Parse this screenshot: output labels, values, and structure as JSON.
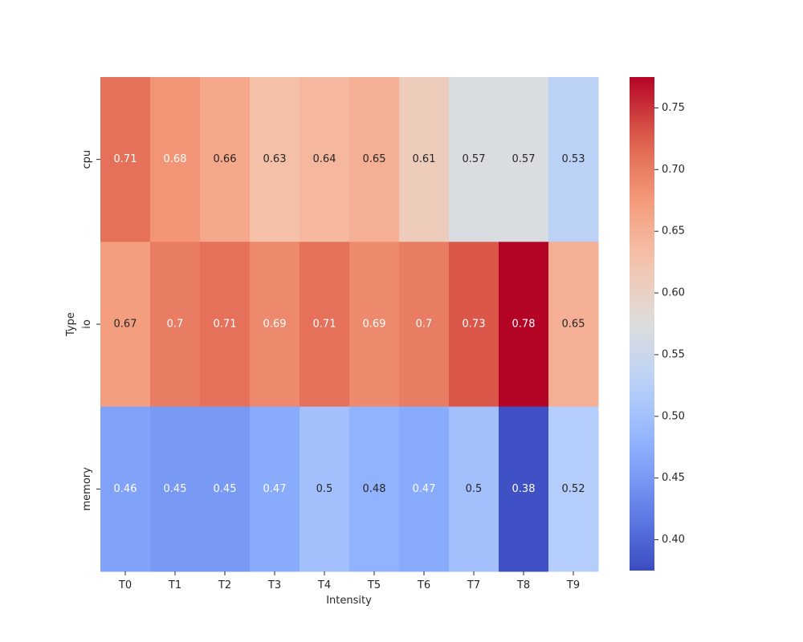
{
  "chart_data": {
    "type": "heatmap",
    "title": "",
    "xlabel": "Intensity",
    "ylabel": "Type",
    "x_categories": [
      "T0",
      "T1",
      "T2",
      "T3",
      "T4",
      "T5",
      "T6",
      "T7",
      "T8",
      "T9"
    ],
    "y_categories": [
      "cpu",
      "io",
      "memory"
    ],
    "values": [
      [
        0.71,
        0.68,
        0.66,
        0.63,
        0.64,
        0.65,
        0.61,
        0.57,
        0.57,
        0.53
      ],
      [
        0.67,
        0.7,
        0.71,
        0.69,
        0.71,
        0.69,
        0.7,
        0.73,
        0.78,
        0.65
      ],
      [
        0.46,
        0.45,
        0.45,
        0.47,
        0.5,
        0.48,
        0.47,
        0.5,
        0.38,
        0.52
      ]
    ],
    "value_labels": [
      [
        "0.71",
        "0.68",
        "0.66",
        "0.63",
        "0.64",
        "0.65",
        "0.61",
        "0.57",
        "0.57",
        "0.53"
      ],
      [
        "0.67",
        "0.7",
        "0.71",
        "0.69",
        "0.71",
        "0.69",
        "0.7",
        "0.73",
        "0.78",
        "0.65"
      ],
      [
        "0.46",
        "0.45",
        "0.45",
        "0.47",
        "0.5",
        "0.48",
        "0.47",
        "0.5",
        "0.38",
        "0.52"
      ]
    ],
    "colormap": "coolwarm",
    "vmin": 0.375,
    "vmax": 0.775,
    "colorbar": {
      "ticks": [
        0.4,
        0.45,
        0.5,
        0.55,
        0.6,
        0.65,
        0.7,
        0.75
      ],
      "tick_labels": [
        "0.40",
        "0.45",
        "0.50",
        "0.55",
        "0.60",
        "0.65",
        "0.70",
        "0.75"
      ]
    }
  }
}
